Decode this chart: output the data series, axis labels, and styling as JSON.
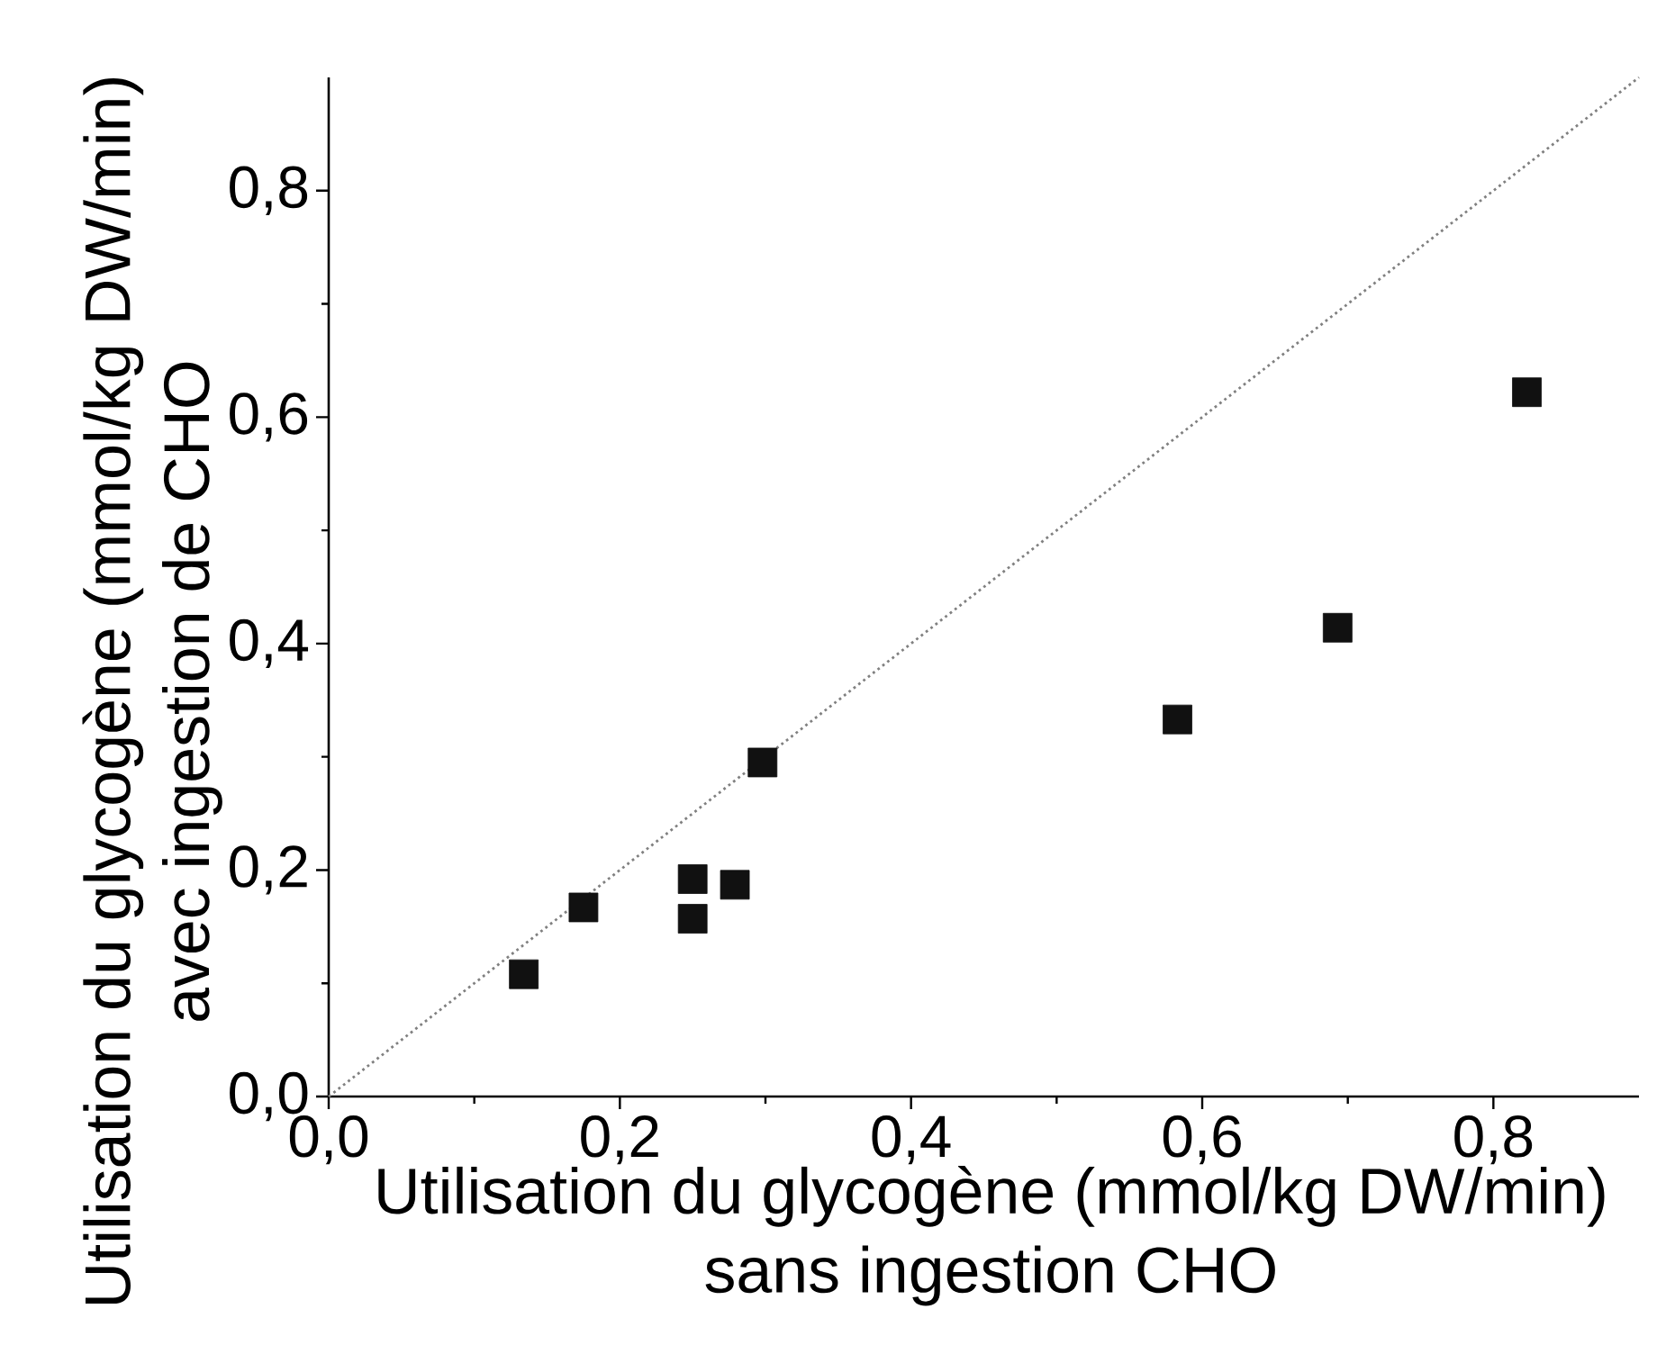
{
  "chart_data": {
    "type": "scatter",
    "xlabel": "Utilisation du glycogène (mmol/kg DW/min) sans ingestion CHO",
    "ylabel": "Utilisation du glycogène (mmol/kg DW/min) avec ingestion de CHO",
    "xlim": [
      0,
      0.9
    ],
    "ylim": [
      0,
      0.9
    ],
    "xticks": [
      {
        "value": 0,
        "label": "0,0"
      },
      {
        "value": 0.2,
        "label": "0,2"
      },
      {
        "value": 0.4,
        "label": "0,4"
      },
      {
        "value": 0.6,
        "label": "0,6"
      },
      {
        "value": 0.8,
        "label": "0,8"
      }
    ],
    "yticks": [
      {
        "value": 0,
        "label": "0,0"
      },
      {
        "value": 0.2,
        "label": "0,2"
      },
      {
        "value": 0.4,
        "label": "0,4"
      },
      {
        "value": 0.6,
        "label": "0,6"
      },
      {
        "value": 0.8,
        "label": "0,8"
      }
    ],
    "grid": false,
    "marker": "square",
    "series": [
      {
        "type": "scatter",
        "color": "#111111",
        "x": [
          0.134,
          0.175,
          0.25,
          0.25,
          0.279,
          0.298,
          0.583,
          0.693,
          0.823
        ],
        "values": [
          0.108,
          0.167,
          0.192,
          0.157,
          0.187,
          0.295,
          0.333,
          0.414,
          0.622
        ]
      },
      {
        "type": "line",
        "color": "#808080",
        "line_style": "dotted",
        "marker": "none",
        "x": [
          0,
          0.9
        ],
        "values": [
          0,
          0.9
        ]
      }
    ]
  }
}
